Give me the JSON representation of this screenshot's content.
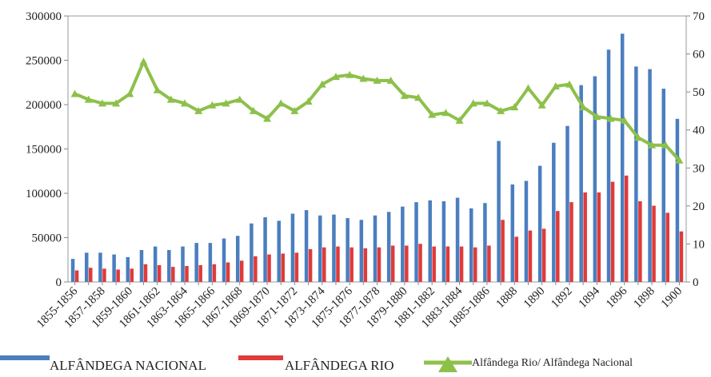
{
  "chart_data": {
    "type": "bar",
    "categories": [
      "1855-1856",
      null,
      "1857-1858",
      null,
      "1859-1860",
      null,
      "1861-1862",
      null,
      "1863-1864",
      null,
      "1865-1866",
      null,
      "1867-1868",
      null,
      "1869-1870",
      null,
      "1871-1872",
      null,
      "1873-1874",
      null,
      "1875-1876",
      null,
      "1877-1878",
      null,
      "1879-1880",
      null,
      "1881-1882",
      null,
      "1883-1884",
      null,
      "1885-1886",
      null,
      "1888",
      null,
      "1890",
      null,
      "1892",
      null,
      "1894",
      null,
      "1896",
      null,
      "1898",
      null,
      "1900"
    ],
    "series": [
      {
        "name": "ALFÂNDEGA NACIONAL",
        "color": "#4a7ebf",
        "values": [
          26000,
          33000,
          33000,
          31000,
          28000,
          36000,
          40000,
          36000,
          40000,
          44000,
          44000,
          49000,
          52000,
          66000,
          73000,
          69000,
          77000,
          81000,
          75000,
          76000,
          72000,
          70000,
          75000,
          79000,
          85000,
          90000,
          92000,
          91000,
          95000,
          83000,
          89000,
          159000,
          110000,
          114000,
          131000,
          157000,
          176000,
          222000,
          232000,
          262000,
          280000,
          243000,
          240000,
          218000,
          184000
        ]
      },
      {
        "name": "ALFÂNDEGA RIO",
        "color": "#e03a3a",
        "values": [
          13000,
          16000,
          15000,
          14000,
          15000,
          20000,
          19000,
          17000,
          18000,
          19000,
          20000,
          22000,
          24000,
          29000,
          31000,
          32000,
          33000,
          37000,
          39000,
          40000,
          39000,
          38000,
          39000,
          41000,
          41000,
          43000,
          40000,
          40000,
          40000,
          39000,
          41000,
          70000,
          51000,
          58000,
          60000,
          80000,
          90000,
          101000,
          101000,
          113000,
          120000,
          91000,
          86000,
          78000,
          57000
        ]
      },
      {
        "name": "Alfândega Rio/ Alfândega Nacional",
        "color": "#8dc04a",
        "type": "line",
        "axis": "y2",
        "values": [
          49.5,
          48,
          47,
          47,
          49.5,
          58,
          50.5,
          48,
          47,
          45,
          46.5,
          47,
          48,
          45,
          43,
          47,
          45,
          47.5,
          52,
          54,
          54.5,
          53.5,
          53,
          53,
          49,
          48.5,
          44,
          44.5,
          42.5,
          47,
          47,
          45,
          46,
          51,
          46.5,
          51.5,
          52,
          46,
          43.5,
          43,
          42.5,
          38,
          36,
          36,
          32
        ]
      }
    ],
    "ylim": [
      0,
      300000
    ],
    "yticks": [
      0,
      50000,
      100000,
      150000,
      200000,
      250000,
      300000
    ],
    "y2lim": [
      0,
      70
    ],
    "y2ticks": [
      0,
      10,
      20,
      30,
      40,
      50,
      60,
      70
    ],
    "grid": false
  }
}
